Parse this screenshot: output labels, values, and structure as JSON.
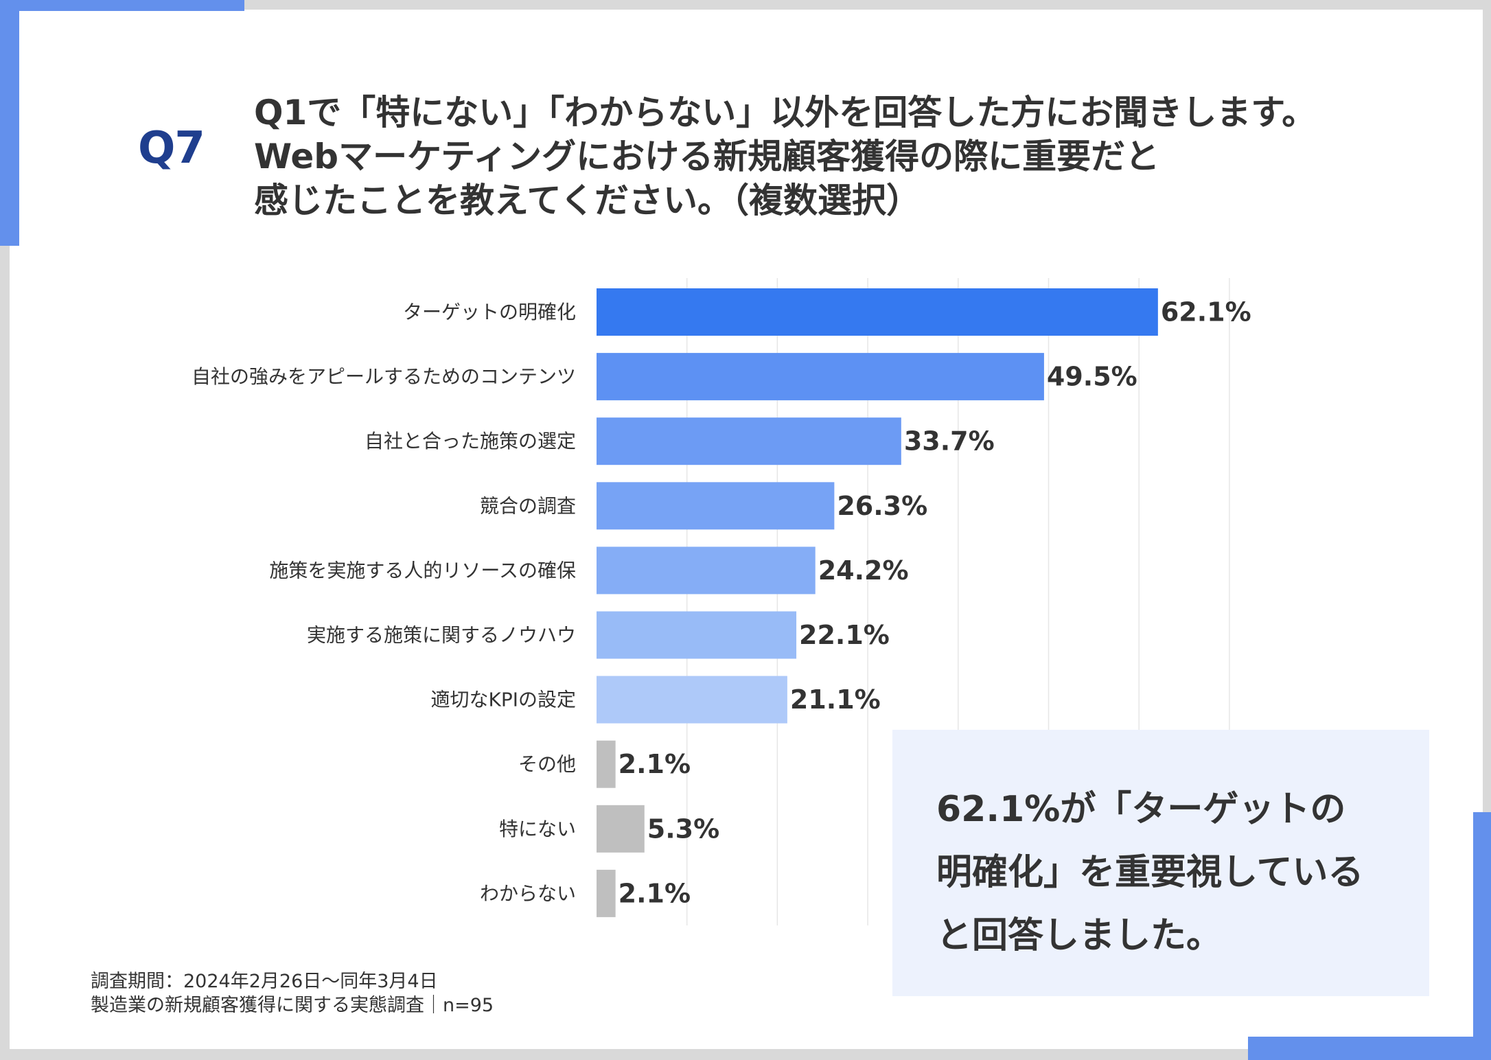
{
  "colors": {
    "accent": "#6390ec",
    "q_label": "#1f3e8e",
    "grid": "#e6e6e6",
    "other_bar": "#bfbfbf",
    "callout_bg": "#edf2fd"
  },
  "header": {
    "q_label": "Q7",
    "question_lines": [
      "Q1で「特にない」「わからない」以外を回答した方にお聞きします。",
      "Webマーケティングにおける新規顧客獲得の際に重要だと",
      "感じたことを教えてください。（複数選択）"
    ]
  },
  "chart_data": {
    "type": "bar",
    "orientation": "horizontal",
    "categories": [
      "ターゲットの明確化",
      "自社の強みをアピールするためのコンテンツ",
      "自社と合った施策の選定",
      "競合の調査",
      "施策を実施する人的リソースの確保",
      "実施する施策に関するノウハウ",
      "適切なKPIの設定",
      "その他",
      "特にない",
      "わからない"
    ],
    "values": [
      62.1,
      49.5,
      33.7,
      26.3,
      24.2,
      22.1,
      21.1,
      2.1,
      5.3,
      2.1
    ],
    "value_labels": [
      "62.1%",
      "49.5%",
      "33.7%",
      "26.3%",
      "24.2%",
      "22.1%",
      "21.1%",
      "2.1%",
      "5.3%",
      "2.1%"
    ],
    "bar_colors": [
      "#3579f0",
      "#5d91f3",
      "#6c9bf4",
      "#77a3f5",
      "#85adf6",
      "#98bbf7",
      "#aec9f9",
      "#bfbfbf",
      "#bfbfbf",
      "#bfbfbf"
    ],
    "xlim": [
      0,
      70
    ],
    "grid": true
  },
  "callout": {
    "lines": [
      "62.1%が「ターゲットの",
      "明確化」を重要視している",
      "と回答しました。"
    ]
  },
  "footer": {
    "line1": "調査期間：2024年2月26日〜同年3月4日",
    "line2": "製造業の新規顧客獲得に関する実態調査｜n=95"
  }
}
